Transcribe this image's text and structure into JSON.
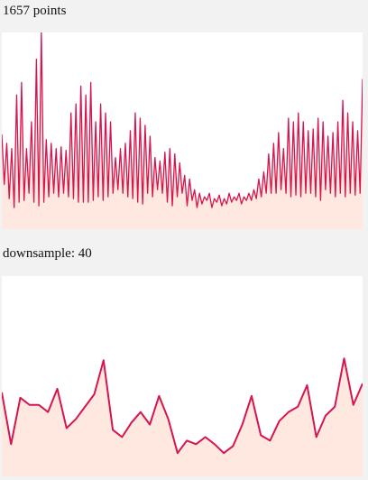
{
  "captions": {
    "top": "1657 points",
    "bottom": "downsample: 40"
  },
  "colors": {
    "line": "#d6154f",
    "fill": "#ffe8df",
    "panel": "#ffffff",
    "background": "#f2f2f2"
  },
  "chart_data": [
    {
      "type": "area",
      "title": "",
      "xlabel": "",
      "ylabel": "",
      "grid": false,
      "note_values": "approximate envelope of a dense oscillating signal, relative 0-1 scale",
      "ylim": [
        0,
        1
      ],
      "series": [
        {
          "values": [
            0.43,
            0.15,
            0.38,
            0.07,
            0.35,
            0.02,
            0.65,
            0.05,
            0.72,
            0.06,
            0.35,
            0.1,
            0.5,
            0.05,
            0.85,
            0.03,
            1.0,
            0.05,
            0.4,
            0.08,
            0.38,
            0.1,
            0.35,
            0.08,
            0.36,
            0.1,
            0.34,
            0.08,
            0.55,
            0.07,
            0.6,
            0.05,
            0.7,
            0.05,
            0.65,
            0.05,
            0.72,
            0.06,
            0.5,
            0.08,
            0.6,
            0.06,
            0.55,
            0.08,
            0.5,
            0.1,
            0.3,
            0.12,
            0.35,
            0.1,
            0.38,
            0.08,
            0.45,
            0.07,
            0.55,
            0.05,
            0.52,
            0.04,
            0.48,
            0.1,
            0.42,
            0.08,
            0.3,
            0.12,
            0.28,
            0.1,
            0.33,
            0.05,
            0.35,
            0.03,
            0.32,
            0.08,
            0.27,
            0.1,
            0.2,
            0.03,
            0.18,
            0.06,
            0.12,
            0.02,
            0.1,
            0.04,
            0.08,
            0.06,
            0.1,
            0.02,
            0.07,
            0.05,
            0.09,
            0.03,
            0.07,
            0.04,
            0.1,
            0.05,
            0.08,
            0.06,
            0.1,
            0.04,
            0.08,
            0.06,
            0.1,
            0.06,
            0.12,
            0.07,
            0.18,
            0.08,
            0.22,
            0.1,
            0.32,
            0.1,
            0.38,
            0.1,
            0.44,
            0.12,
            0.35,
            0.1,
            0.52,
            0.08,
            0.5,
            0.09,
            0.55,
            0.08,
            0.5,
            0.1,
            0.45,
            0.1,
            0.46,
            0.08,
            0.52,
            0.06,
            0.5,
            0.12,
            0.42,
            0.1,
            0.44,
            0.08,
            0.5,
            0.1,
            0.62,
            0.08,
            0.55,
            0.1,
            0.5,
            0.09,
            0.45,
            0.1,
            0.74
          ]
        }
      ]
    },
    {
      "type": "area",
      "title": "",
      "xlabel": "",
      "ylabel": "",
      "grid": false,
      "note_values": "downsampled signal, relative 0-1 scale",
      "ylim": [
        0,
        1
      ],
      "series": [
        {
          "values": [
            0.44,
            0.15,
            0.41,
            0.37,
            0.37,
            0.33,
            0.46,
            0.24,
            0.29,
            0.36,
            0.43,
            0.62,
            0.23,
            0.19,
            0.27,
            0.33,
            0.26,
            0.42,
            0.29,
            0.1,
            0.17,
            0.15,
            0.19,
            0.15,
            0.1,
            0.14,
            0.26,
            0.42,
            0.2,
            0.17,
            0.28,
            0.33,
            0.36,
            0.48,
            0.19,
            0.31,
            0.36,
            0.63,
            0.37,
            0.49
          ]
        }
      ]
    }
  ]
}
